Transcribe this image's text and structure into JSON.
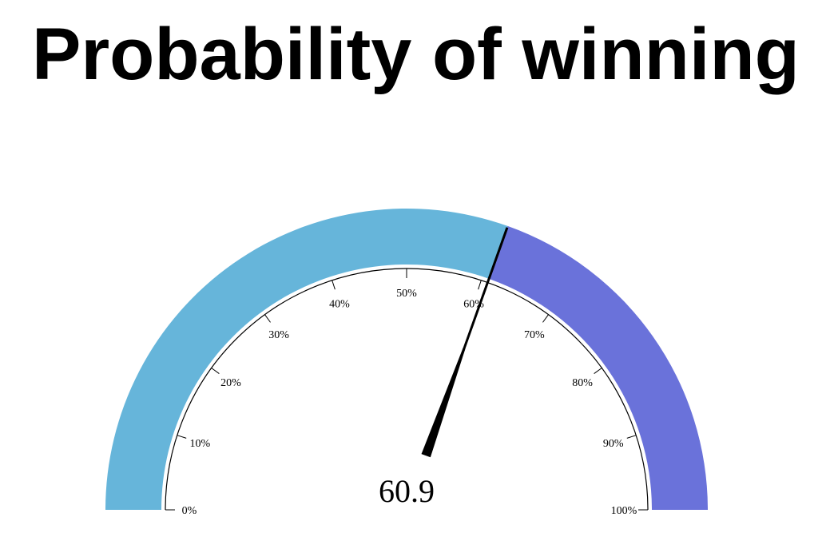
{
  "title": "Probability of winning",
  "chart_data": {
    "type": "gauge",
    "title": "Probability of winning",
    "value": 60.9,
    "value_label": "60.9",
    "range": [
      0,
      100
    ],
    "bands": [
      {
        "from": 0,
        "to": 60.9,
        "color": "#66b5da"
      },
      {
        "from": 60.9,
        "to": 100,
        "color": "#6a72da"
      }
    ],
    "ticks": [
      {
        "value": 0,
        "label": "0%"
      },
      {
        "value": 10,
        "label": "10%"
      },
      {
        "value": 20,
        "label": "20%"
      },
      {
        "value": 30,
        "label": "30%"
      },
      {
        "value": 40,
        "label": "40%"
      },
      {
        "value": 50,
        "label": "50%"
      },
      {
        "value": 60,
        "label": "60%"
      },
      {
        "value": 70,
        "label": "70%"
      },
      {
        "value": 80,
        "label": "80%"
      },
      {
        "value": 90,
        "label": "90%"
      },
      {
        "value": 100,
        "label": "100%"
      }
    ],
    "needle_color": "#000000"
  }
}
